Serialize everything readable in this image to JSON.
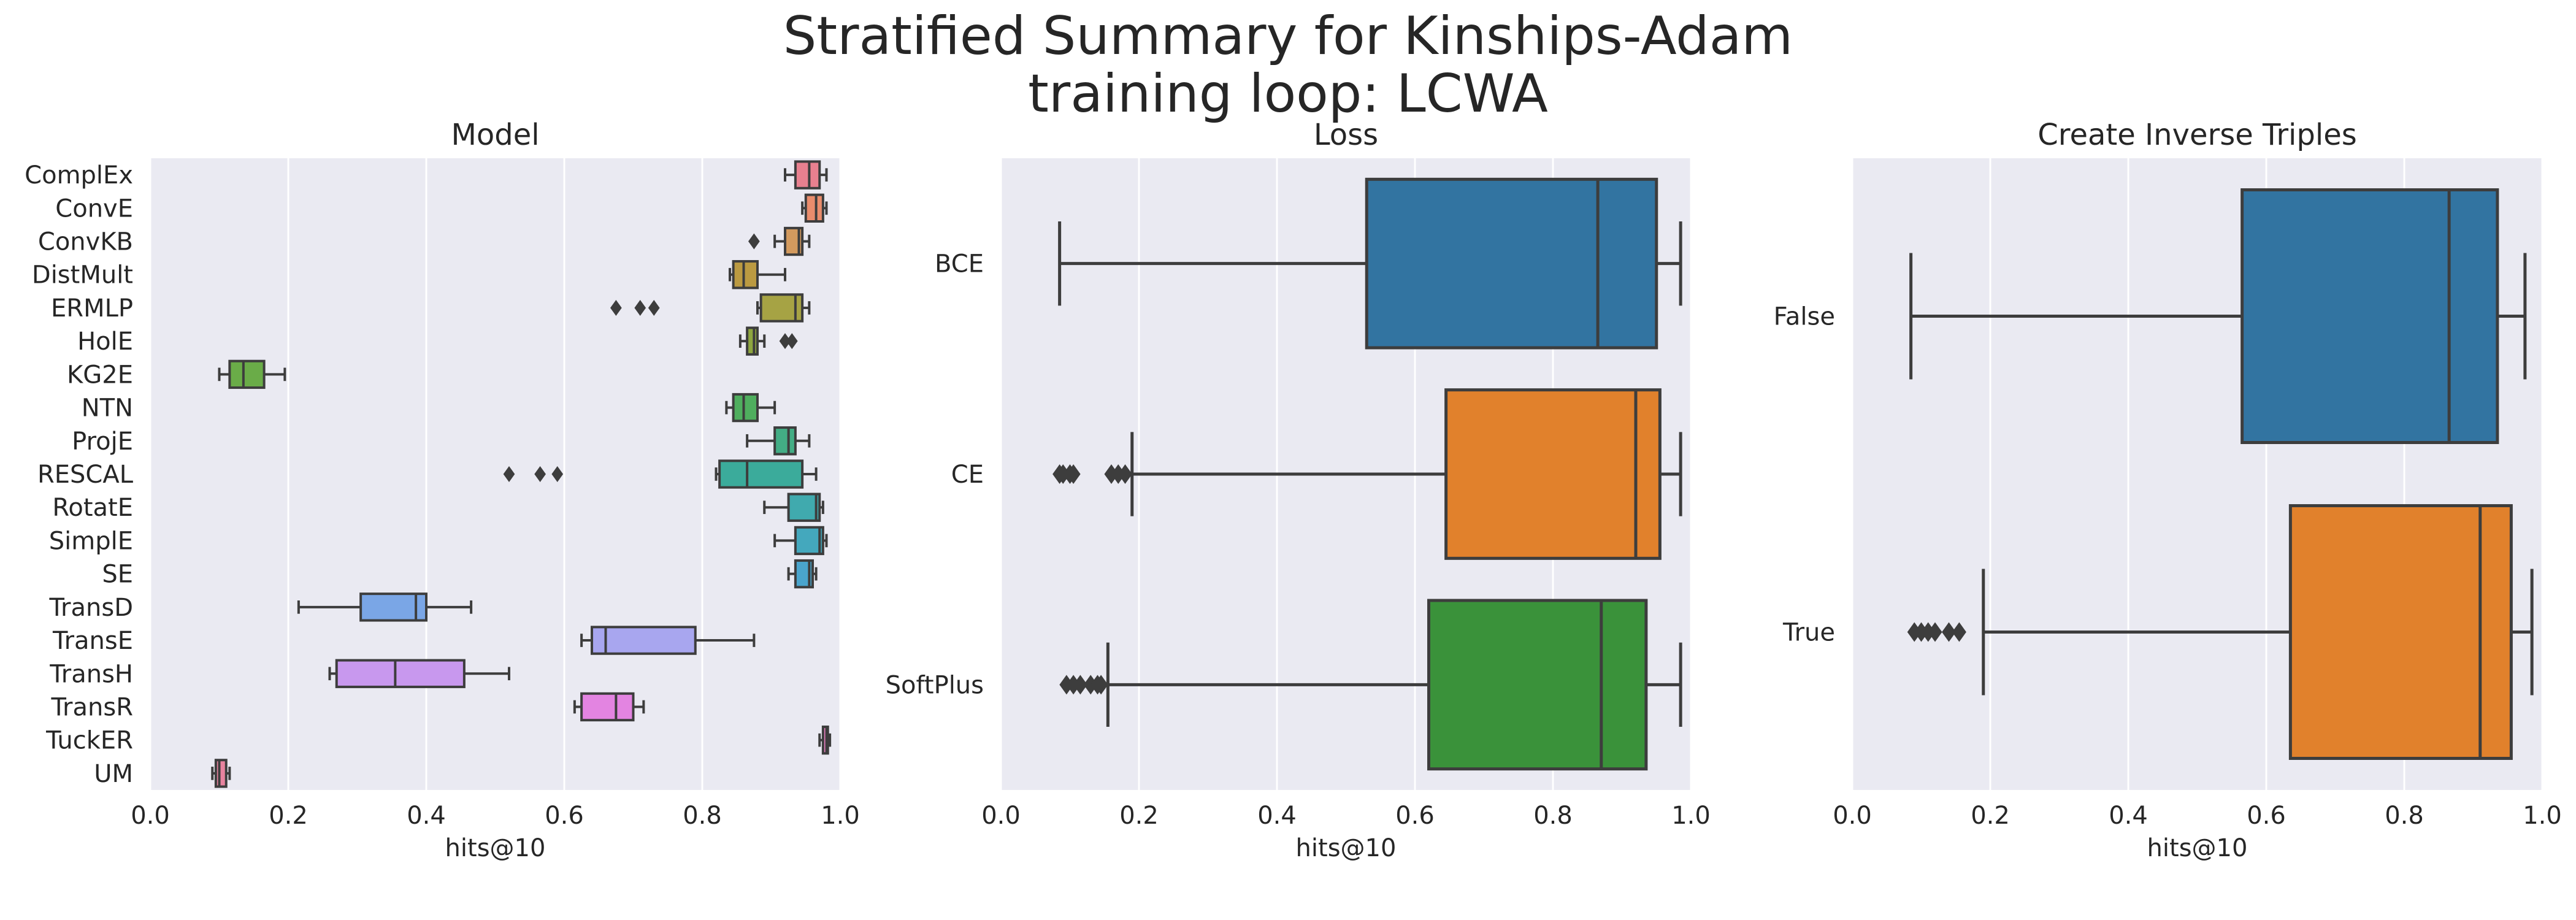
{
  "figure": {
    "title_line1": "Stratified Summary for Kinships-Adam",
    "title_line2": "training loop: LCWA"
  },
  "colors": {
    "axes_bg": "#eaeaf2",
    "grid": "#ffffff",
    "box_edge": "#3d3d3d"
  },
  "chart_data": [
    {
      "type": "box",
      "orientation": "horizontal",
      "title": "Model",
      "xlabel": "hits@10",
      "ylabel": "",
      "xlim": [
        0,
        1
      ],
      "xticks": [
        "0.0",
        "0.2",
        "0.4",
        "0.6",
        "0.8",
        "1.0"
      ],
      "grid": true,
      "categories": [
        "ComplEx",
        "ConvE",
        "ConvKB",
        "DistMult",
        "ERMLP",
        "HolE",
        "KG2E",
        "NTN",
        "ProjE",
        "RESCAL",
        "RotatE",
        "SimplE",
        "SE",
        "TransD",
        "TransE",
        "TransH",
        "TransR",
        "TuckER",
        "UM"
      ],
      "boxes": [
        {
          "label": "ComplEx",
          "color": "#e8808f",
          "whislo": 0.92,
          "q1": 0.935,
          "med": 0.955,
          "q3": 0.97,
          "whishi": 0.98,
          "fliers": []
        },
        {
          "label": "ConvE",
          "color": "#e98c6c",
          "whislo": 0.945,
          "q1": 0.95,
          "med": 0.965,
          "q3": 0.975,
          "whishi": 0.98,
          "fliers": []
        },
        {
          "label": "ConvKB",
          "color": "#d39a5e",
          "whislo": 0.905,
          "q1": 0.92,
          "med": 0.94,
          "q3": 0.945,
          "whishi": 0.955,
          "fliers": [
            0.875
          ]
        },
        {
          "label": "DistMult",
          "color": "#bb9a41",
          "whislo": 0.84,
          "q1": 0.845,
          "med": 0.86,
          "q3": 0.88,
          "whishi": 0.92,
          "fliers": []
        },
        {
          "label": "ERMLP",
          "color": "#a6a344",
          "whislo": 0.88,
          "q1": 0.885,
          "med": 0.935,
          "q3": 0.945,
          "whishi": 0.955,
          "fliers": [
            0.675,
            0.71,
            0.73
          ]
        },
        {
          "label": "HolE",
          "color": "#8ea63f",
          "whislo": 0.855,
          "q1": 0.865,
          "med": 0.875,
          "q3": 0.88,
          "whishi": 0.89,
          "fliers": [
            0.92,
            0.93
          ]
        },
        {
          "label": "KG2E",
          "color": "#6aac48",
          "whislo": 0.1,
          "q1": 0.115,
          "med": 0.135,
          "q3": 0.165,
          "whishi": 0.195,
          "fliers": []
        },
        {
          "label": "NTN",
          "color": "#4fae5e",
          "whislo": 0.835,
          "q1": 0.845,
          "med": 0.86,
          "q3": 0.88,
          "whishi": 0.905,
          "fliers": []
        },
        {
          "label": "ProjE",
          "color": "#43ad85",
          "whislo": 0.865,
          "q1": 0.905,
          "med": 0.925,
          "q3": 0.935,
          "whishi": 0.955,
          "fliers": []
        },
        {
          "label": "RESCAL",
          "color": "#3bab9b",
          "whislo": 0.82,
          "q1": 0.825,
          "med": 0.865,
          "q3": 0.945,
          "whishi": 0.965,
          "fliers": [
            0.52,
            0.565,
            0.59
          ]
        },
        {
          "label": "RotatE",
          "color": "#40aaae",
          "whislo": 0.89,
          "q1": 0.925,
          "med": 0.965,
          "q3": 0.97,
          "whishi": 0.975,
          "fliers": []
        },
        {
          "label": "SimplE",
          "color": "#44a8bd",
          "whislo": 0.905,
          "q1": 0.935,
          "med": 0.97,
          "q3": 0.975,
          "whishi": 0.98,
          "fliers": []
        },
        {
          "label": "SE",
          "color": "#4aa4cc",
          "whislo": 0.925,
          "q1": 0.935,
          "med": 0.955,
          "q3": 0.96,
          "whishi": 0.965,
          "fliers": []
        },
        {
          "label": "TransD",
          "color": "#7aa6e6",
          "whislo": 0.215,
          "q1": 0.305,
          "med": 0.385,
          "q3": 0.4,
          "whishi": 0.465,
          "fliers": []
        },
        {
          "label": "TransE",
          "color": "#a8a6ef",
          "whislo": 0.625,
          "q1": 0.64,
          "med": 0.66,
          "q3": 0.79,
          "whishi": 0.875,
          "fliers": []
        },
        {
          "label": "TransH",
          "color": "#c898ee",
          "whislo": 0.26,
          "q1": 0.27,
          "med": 0.355,
          "q3": 0.455,
          "whishi": 0.52,
          "fliers": []
        },
        {
          "label": "TransR",
          "color": "#e384e1",
          "whislo": 0.615,
          "q1": 0.625,
          "med": 0.675,
          "q3": 0.7,
          "whishi": 0.715,
          "fliers": []
        },
        {
          "label": "TuckER",
          "color": "#ea80c2",
          "whislo": 0.97,
          "q1": 0.975,
          "med": 0.98,
          "q3": 0.982,
          "whishi": 0.985,
          "fliers": []
        },
        {
          "label": "UM",
          "color": "#e8839f",
          "whislo": 0.09,
          "q1": 0.095,
          "med": 0.1,
          "q3": 0.11,
          "whishi": 0.115,
          "fliers": []
        }
      ]
    },
    {
      "type": "box",
      "orientation": "horizontal",
      "title": "Loss",
      "xlabel": "hits@10",
      "ylabel": "",
      "xlim": [
        0,
        1
      ],
      "xticks": [
        "0.0",
        "0.2",
        "0.4",
        "0.6",
        "0.8",
        "1.0"
      ],
      "grid": true,
      "categories": [
        "BCE",
        "CE",
        "SoftPlus"
      ],
      "boxes": [
        {
          "label": "BCE",
          "color": "#3274a1",
          "whislo": 0.085,
          "q1": 0.53,
          "med": 0.865,
          "q3": 0.95,
          "whishi": 0.985,
          "fliers": []
        },
        {
          "label": "CE",
          "color": "#e1812c",
          "whislo": 0.19,
          "q1": 0.645,
          "med": 0.92,
          "q3": 0.955,
          "whishi": 0.985,
          "fliers": [
            0.085,
            0.09,
            0.1,
            0.105,
            0.16,
            0.17,
            0.18
          ]
        },
        {
          "label": "SoftPlus",
          "color": "#3a923a",
          "whislo": 0.155,
          "q1": 0.62,
          "med": 0.87,
          "q3": 0.935,
          "whishi": 0.985,
          "fliers": [
            0.095,
            0.105,
            0.115,
            0.13,
            0.14,
            0.145
          ]
        }
      ]
    },
    {
      "type": "box",
      "orientation": "horizontal",
      "title": "Create Inverse Triples",
      "xlabel": "hits@10",
      "ylabel": "",
      "xlim": [
        0,
        1
      ],
      "xticks": [
        "0.0",
        "0.2",
        "0.4",
        "0.6",
        "0.8",
        "1.0"
      ],
      "grid": true,
      "categories": [
        "False",
        "True"
      ],
      "boxes": [
        {
          "label": "False",
          "color": "#3274a1",
          "whislo": 0.085,
          "q1": 0.565,
          "med": 0.865,
          "q3": 0.935,
          "whishi": 0.975,
          "fliers": []
        },
        {
          "label": "True",
          "color": "#e1812c",
          "whislo": 0.19,
          "q1": 0.635,
          "med": 0.91,
          "q3": 0.955,
          "whishi": 0.985,
          "fliers": [
            0.09,
            0.1,
            0.11,
            0.12,
            0.14,
            0.155
          ]
        }
      ]
    }
  ]
}
